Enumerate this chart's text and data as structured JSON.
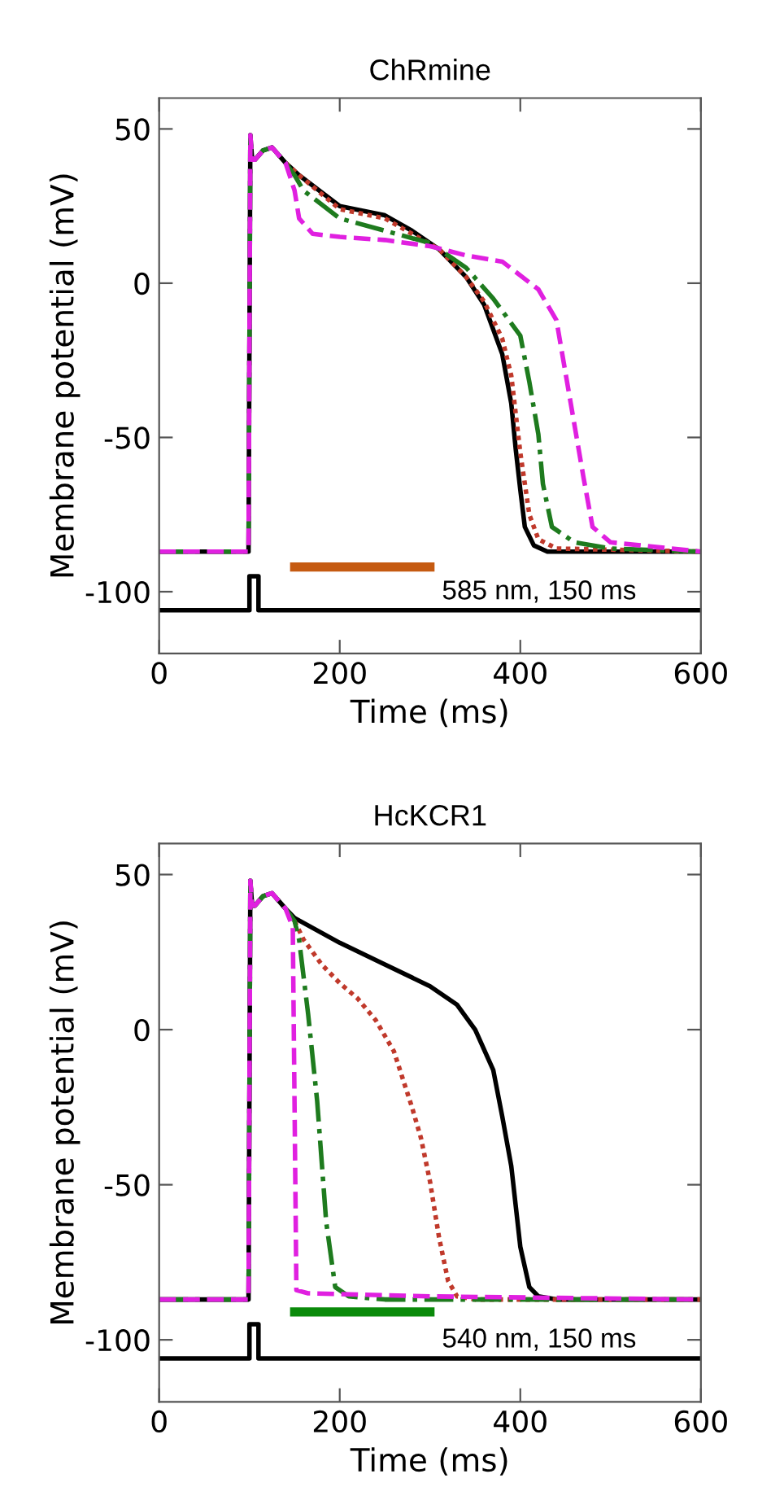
{
  "chart_data": [
    {
      "type": "line",
      "title": "ChRmine",
      "xlabel": "Time (ms)",
      "ylabel": "Membrane potential (mV)",
      "xlim": [
        0,
        600
      ],
      "ylim": [
        -120,
        60
      ],
      "xticks": [
        0,
        200,
        400,
        600
      ],
      "yticks": [
        -100,
        -50,
        0,
        50
      ],
      "series": [
        {
          "color": "#000000",
          "line_style": "solid",
          "x": [
            0,
            99,
            101,
            103,
            106,
            115,
            125,
            140,
            155,
            200,
            250,
            280,
            310,
            340,
            360,
            380,
            390,
            395,
            400,
            405,
            415,
            430,
            600
          ],
          "values": [
            -87,
            -87,
            48,
            40,
            40,
            43,
            44,
            39,
            35,
            25,
            22,
            17,
            11,
            2,
            -7,
            -23,
            -39,
            -54,
            -67,
            -79,
            -85,
            -87,
            -87
          ]
        },
        {
          "color": "#c0392b",
          "line_style": "dotted",
          "x": [
            140,
            155,
            200,
            250,
            280,
            310,
            340,
            360,
            380,
            390,
            400,
            410,
            420,
            440,
            600
          ],
          "values": [
            39,
            35,
            24,
            21,
            16,
            11,
            2,
            -6,
            -18,
            -30,
            -55,
            -75,
            -83,
            -86,
            -87
          ]
        },
        {
          "color": "#1e7b1e",
          "line_style": "dashdot",
          "x": [
            0,
            99,
            101,
            103,
            106,
            115,
            125,
            140,
            150,
            160,
            200,
            250,
            300,
            340,
            370,
            400,
            410,
            420,
            425,
            435,
            460,
            500,
            600
          ],
          "values": [
            -87,
            -87,
            48,
            40,
            40,
            43,
            44,
            39,
            35,
            30,
            21,
            17,
            13,
            5,
            -5,
            -17,
            -32,
            -49,
            -65,
            -79,
            -84,
            -86,
            -87
          ]
        },
        {
          "color": "#e020e0",
          "line_style": "dashed",
          "x": [
            0,
            99,
            101,
            103,
            106,
            115,
            125,
            140,
            150,
            155,
            170,
            200,
            250,
            300,
            340,
            380,
            420,
            440,
            460,
            470,
            480,
            500,
            600
          ],
          "values": [
            -87,
            -87,
            48,
            40,
            40,
            43,
            44,
            39,
            30,
            21,
            16,
            15,
            14,
            12,
            9,
            7,
            -2,
            -12,
            -46,
            -63,
            -79,
            -84,
            -87
          ]
        },
        {
          "color": "#000000",
          "line_style": "solid",
          "x": [
            0,
            100,
            100,
            110,
            110,
            600
          ],
          "values": [
            -106,
            -106,
            -95,
            -95,
            -106,
            -106
          ]
        },
        {
          "color": "#c55a11",
          "line_style": "solid",
          "x": [
            150,
            300
          ],
          "values": [
            -92,
            -92
          ]
        }
      ],
      "annotations": [
        "585 nm, 150 ms"
      ]
    },
    {
      "type": "line",
      "title": "HcKCR1",
      "xlabel": "Time (ms)",
      "ylabel": "Membrane potential (mV)",
      "xlim": [
        0,
        600
      ],
      "ylim": [
        -120,
        60
      ],
      "xticks": [
        0,
        200,
        400,
        600
      ],
      "yticks": [
        -100,
        -50,
        0,
        50
      ],
      "series": [
        {
          "color": "#000000",
          "line_style": "solid",
          "x": [
            0,
            99,
            101,
            103,
            106,
            115,
            125,
            140,
            150,
            200,
            250,
            300,
            330,
            350,
            370,
            380,
            390,
            400,
            410,
            420,
            440,
            600
          ],
          "values": [
            -87,
            -87,
            48,
            40,
            40,
            43,
            44,
            39,
            36,
            28,
            21,
            14,
            8,
            0,
            -13,
            -28,
            -44,
            -70,
            -83,
            -86,
            -87,
            -87
          ]
        },
        {
          "color": "#c0392b",
          "line_style": "dotted",
          "x": [
            150,
            160,
            180,
            200,
            220,
            240,
            260,
            280,
            290,
            300,
            310,
            320,
            330,
            350,
            600
          ],
          "values": [
            35,
            29,
            21,
            15,
            10,
            3,
            -7,
            -25,
            -35,
            -49,
            -67,
            -81,
            -86,
            -87,
            -87
          ]
        },
        {
          "color": "#1e7b1e",
          "line_style": "dashdot",
          "x": [
            0,
            99,
            101,
            103,
            106,
            115,
            125,
            140,
            150,
            155,
            165,
            175,
            185,
            195,
            210,
            250,
            600
          ],
          "values": [
            -87,
            -87,
            48,
            40,
            40,
            43,
            44,
            39,
            35,
            29,
            5,
            -23,
            -62,
            -83,
            -86,
            -87,
            -87
          ]
        },
        {
          "color": "#e020e0",
          "line_style": "dashed",
          "x": [
            0,
            99,
            101,
            103,
            106,
            115,
            125,
            140,
            148,
            152,
            165,
            300,
            600
          ],
          "values": [
            -87,
            -87,
            48,
            40,
            40,
            43,
            44,
            39,
            33,
            -84,
            -85,
            -86,
            -87
          ]
        },
        {
          "color": "#000000",
          "line_style": "solid",
          "x": [
            0,
            100,
            100,
            110,
            110,
            600
          ],
          "values": [
            -106,
            -106,
            -95,
            -95,
            -106,
            -106
          ]
        },
        {
          "color": "#0a8a0a",
          "line_style": "solid",
          "x": [
            150,
            300
          ],
          "values": [
            -91,
            -91
          ]
        }
      ],
      "annotations": [
        "540 nm, 150 ms"
      ]
    }
  ]
}
